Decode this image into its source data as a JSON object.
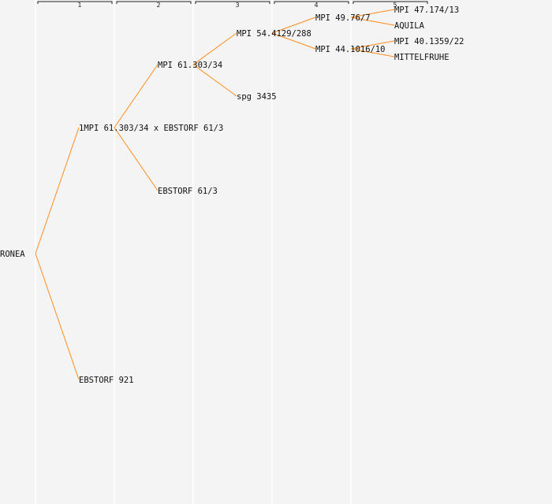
{
  "generations": {
    "labels": [
      "1",
      "2",
      "3",
      "4",
      "5"
    ]
  },
  "colors": {
    "background": "#f4f4f4",
    "connector": "#ff8c1a",
    "column_line": "#ffffff",
    "bracket": "#222222",
    "text": "#111111"
  },
  "tree": {
    "root": "RONEA",
    "gen1": {
      "top": "1MPI 61.303/34 x EBSTORF 61/3",
      "bottom": "EBSTORF 921"
    },
    "gen2": {
      "top": "MPI 61.303/34",
      "bottom": "EBSTORF 61/3"
    },
    "gen3": {
      "top": "MPI 54.4129/288",
      "bottom": "spg 3435"
    },
    "gen4": {
      "top": "MPI 49.76/7",
      "bottom": "MPI 44.1016/10"
    },
    "gen5": {
      "a": "MPI 47.174/13",
      "b": "AQUILA",
      "c": "MPI 40.1359/22",
      "d": "MITTELFRUHE"
    }
  }
}
